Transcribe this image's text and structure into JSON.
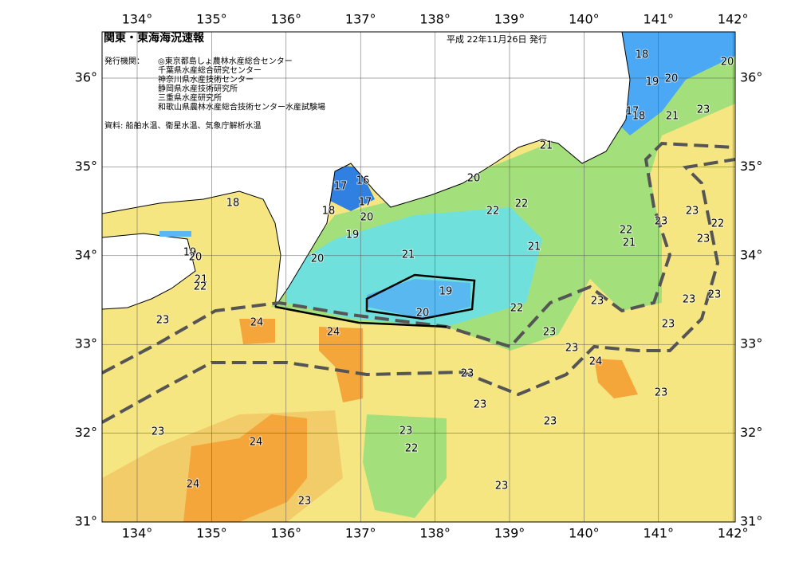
{
  "header": {
    "title": "関東・東海海況速報",
    "date": "平成 22年11月26日 発行",
    "issuer_label": "発行機関：",
    "issuers": [
      "◎東京都島しょ農林水産総合センター",
      "千葉県水産総合研究センター",
      "神奈川県水産技術センター",
      "静岡県水産技術研究所",
      "三重県水産研究所",
      "和歌山県農林水産総合技術センター水産試験場"
    ],
    "source": "資料: 船舶水温、衛星水温、気象庁解析水温"
  },
  "axes": {
    "lon_labels": [
      "134°",
      "135°",
      "136°",
      "137°",
      "138°",
      "139°",
      "140°",
      "141°",
      "142°"
    ],
    "lat_labels": [
      "36°",
      "35°",
      "34°",
      "33°",
      "32°",
      "31°"
    ]
  },
  "contour_labels": [
    18,
    20,
    19,
    20,
    23,
    17,
    18,
    21,
    21,
    20,
    22,
    22,
    17,
    16,
    17,
    18,
    18,
    20,
    19,
    23,
    23,
    22,
    23,
    22,
    21,
    21,
    21,
    20,
    19,
    20,
    21,
    22,
    19,
    20,
    22,
    23,
    23,
    23,
    23,
    23,
    24,
    24,
    23,
    23,
    24,
    23,
    23,
    23,
    23,
    23,
    24,
    23,
    22,
    24,
    23,
    23
  ]
}
